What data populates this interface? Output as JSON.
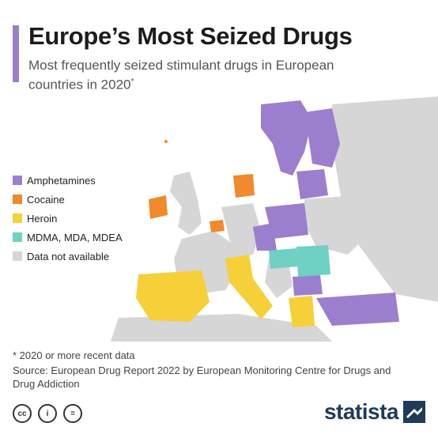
{
  "header": {
    "title": "Europe’s Most Seized Drugs",
    "subtitle": "Most frequently seized stimulant drugs in European countries in 2020",
    "subtitle_marker": "*"
  },
  "legend": [
    {
      "label": "Amphetamines",
      "color": "#9b7fce"
    },
    {
      "label": "Cocaine",
      "color": "#f08a2c"
    },
    {
      "label": "Heroin",
      "color": "#f5d038"
    },
    {
      "label": "MDMA, MDA, MDEA",
      "color": "#6fd0c4"
    },
    {
      "label": "Data not available",
      "color": "#d6d6d6"
    }
  ],
  "map_regions": [
    {
      "region": "Scandinavia",
      "category": "Amphetamines"
    },
    {
      "region": "Finland",
      "category": "Amphetamines"
    },
    {
      "region": "Baltics",
      "category": "Amphetamines"
    },
    {
      "region": "Poland",
      "category": "Amphetamines"
    },
    {
      "region": "Germany",
      "category": "Amphetamines"
    },
    {
      "region": "Bulgaria",
      "category": "Amphetamines"
    },
    {
      "region": "Turkey",
      "category": "Amphetamines"
    },
    {
      "region": "Ireland",
      "category": "Cocaine"
    },
    {
      "region": "Denmark",
      "category": "Cocaine"
    },
    {
      "region": "Belgium",
      "category": "Cocaine"
    },
    {
      "region": "Iberia",
      "category": "Heroin"
    },
    {
      "region": "Italy",
      "category": "Heroin"
    },
    {
      "region": "Greece",
      "category": "Heroin"
    },
    {
      "region": "Hungary",
      "category": "MDMA, MDA, MDEA"
    },
    {
      "region": "Romania",
      "category": "MDMA, MDA, MDEA"
    }
  ],
  "footer": {
    "footnote": "* 2020 or more recent data",
    "source": "Source: European Drug Report 2022 by European Monitoring Centre for Drugs and Drug Addiction",
    "cc_icons": [
      "cc",
      "i",
      "="
    ],
    "brand": "statista"
  },
  "colors": {
    "accent": "#9b7fce",
    "water": "#ffffff",
    "land_na": "#d6d6d6",
    "brand": "#1f3b5a"
  }
}
